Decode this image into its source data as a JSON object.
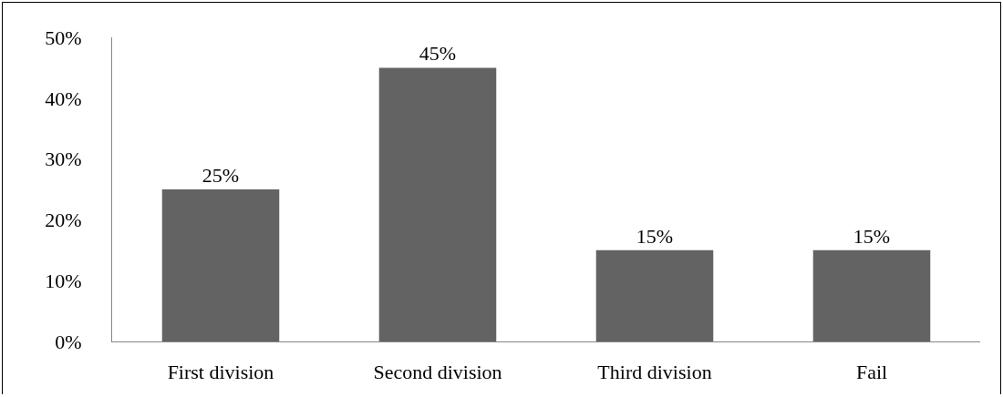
{
  "chart_data": {
    "type": "bar",
    "categories": [
      "First division",
      "Second division",
      "Third division",
      "Fail"
    ],
    "values": [
      25,
      45,
      15,
      15
    ],
    "value_labels": [
      "25%",
      "45%",
      "15%",
      "15%"
    ],
    "color": "#636363",
    "ylim": [
      0,
      50
    ],
    "yticks": [
      {
        "value": 0,
        "label": "0%"
      },
      {
        "value": 10,
        "label": "10%"
      },
      {
        "value": 20,
        "label": "20%"
      },
      {
        "value": 30,
        "label": "30%"
      },
      {
        "value": 40,
        "label": "40%"
      },
      {
        "value": 50,
        "label": "50%"
      }
    ],
    "grid": false
  }
}
